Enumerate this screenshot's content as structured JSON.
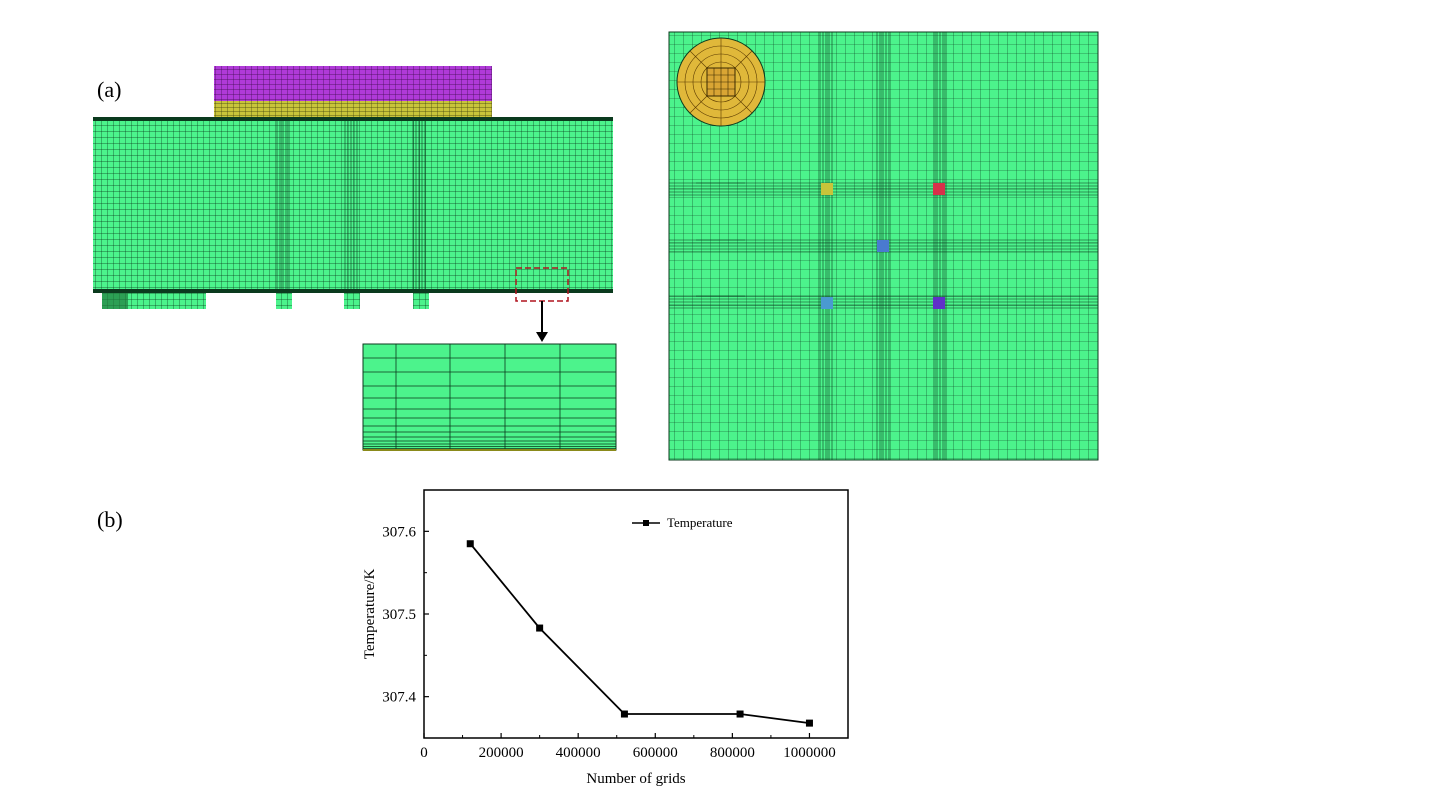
{
  "panels": {
    "a_label": "(a)",
    "b_label": "(b)"
  },
  "mesh": {
    "fluid_color": "#4cf38c",
    "line_color": "#0b3a1e",
    "heat_sink_color": "#b03ad8",
    "substrate_color": "#c8c43a",
    "inlet_color": "#e0b83a",
    "zoom_box_color": "#b0141e"
  },
  "chart_data": {
    "type": "line",
    "title": "",
    "xlabel": "Number of grids",
    "ylabel": "Temperature/K",
    "xlim": [
      0,
      1100000
    ],
    "ylim": [
      307.35,
      307.65
    ],
    "xticks": [
      0,
      200000,
      400000,
      600000,
      800000,
      1000000
    ],
    "yticks": [
      307.4,
      307.5,
      307.6
    ],
    "grid": false,
    "legend_position": "top-right",
    "series": [
      {
        "name": "Temperature",
        "marker": "square",
        "x": [
          120000,
          300000,
          520000,
          820000,
          1000000
        ],
        "y": [
          307.585,
          307.483,
          307.379,
          307.379,
          307.368
        ]
      }
    ]
  }
}
